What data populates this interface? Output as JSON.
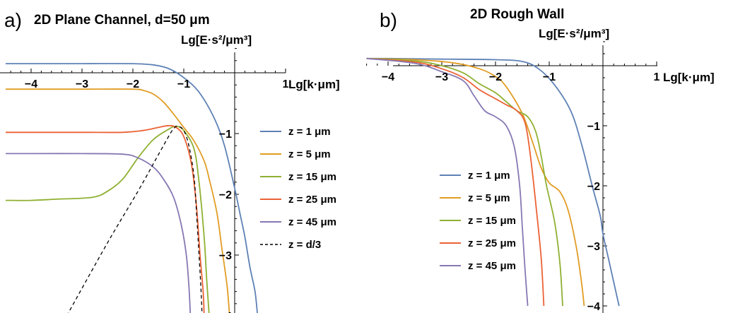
{
  "chart_data": [
    {
      "type": "line",
      "panel_label": "a)",
      "title": "2D Plane Channel, d=50 μm",
      "ylabel": "Lg[E·s²/μm³]",
      "xlabel": "Lg[k·μm]",
      "xlim": [
        -4.5,
        1.0
      ],
      "ylim": [
        -4.0,
        0.4
      ],
      "xticks": [
        -4,
        -3,
        -2,
        -1,
        1
      ],
      "yticks": [
        -1,
        -2,
        -3,
        -4
      ],
      "legend_position": "right",
      "series": [
        {
          "name": "z = 1 μm",
          "color": "#5e81b5",
          "dash": false,
          "points": [
            [
              -4.5,
              0.15
            ],
            [
              -4,
              0.15
            ],
            [
              -3,
              0.15
            ],
            [
              -2,
              0.15
            ],
            [
              -1.6,
              0.13
            ],
            [
              -1.3,
              0.07
            ],
            [
              -1.0,
              -0.08
            ],
            [
              -0.7,
              -0.32
            ],
            [
              -0.4,
              -0.75
            ],
            [
              -0.2,
              -1.2
            ],
            [
              0,
              -1.9
            ],
            [
              0.1,
              -2.3
            ],
            [
              0.2,
              -2.7
            ],
            [
              0.3,
              -3.2
            ],
            [
              0.4,
              -3.6
            ],
            [
              0.45,
              -4.0
            ]
          ]
        },
        {
          "name": "z = 5 μm",
          "color": "#e19c24",
          "dash": false,
          "points": [
            [
              -4.5,
              -0.27
            ],
            [
              -4,
              -0.27
            ],
            [
              -3,
              -0.27
            ],
            [
              -2,
              -0.27
            ],
            [
              -1.8,
              -0.29
            ],
            [
              -1.6,
              -0.35
            ],
            [
              -1.4,
              -0.48
            ],
            [
              -1.2,
              -0.68
            ],
            [
              -1.0,
              -0.9
            ],
            [
              -0.8,
              -1.12
            ],
            [
              -0.6,
              -1.45
            ],
            [
              -0.5,
              -1.75
            ],
            [
              -0.35,
              -2.3
            ],
            [
              -0.25,
              -2.9
            ],
            [
              -0.15,
              -3.5
            ],
            [
              -0.1,
              -4.0
            ]
          ]
        },
        {
          "name": "z = 15 μm",
          "color": "#8fb032",
          "dash": false,
          "points": [
            [
              -4.5,
              -2.1
            ],
            [
              -4,
              -2.1
            ],
            [
              -3.5,
              -2.08
            ],
            [
              -2.8,
              -2.05
            ],
            [
              -2.5,
              -1.95
            ],
            [
              -2.2,
              -1.75
            ],
            [
              -1.9,
              -1.4
            ],
            [
              -1.6,
              -1.1
            ],
            [
              -1.3,
              -0.93
            ],
            [
              -1.15,
              -0.88
            ],
            [
              -1.0,
              -0.95
            ],
            [
              -0.8,
              -1.25
            ],
            [
              -0.7,
              -1.8
            ],
            [
              -0.6,
              -2.7
            ],
            [
              -0.55,
              -3.4
            ],
            [
              -0.5,
              -4.0
            ]
          ]
        },
        {
          "name": "z = 25 μm",
          "color": "#eb6235",
          "dash": false,
          "points": [
            [
              -4.5,
              -0.98
            ],
            [
              -4,
              -0.98
            ],
            [
              -3,
              -0.98
            ],
            [
              -2.2,
              -0.98
            ],
            [
              -1.8,
              -0.95
            ],
            [
              -1.5,
              -0.9
            ],
            [
              -1.3,
              -0.87
            ],
            [
              -1.15,
              -0.9
            ],
            [
              -1.0,
              -1.05
            ],
            [
              -0.85,
              -1.5
            ],
            [
              -0.75,
              -2.2
            ],
            [
              -0.68,
              -3.0
            ],
            [
              -0.62,
              -3.6
            ],
            [
              -0.6,
              -4.0
            ]
          ]
        },
        {
          "name": "z = 45 μm",
          "color": "#8778b3",
          "dash": false,
          "points": [
            [
              -4.5,
              -1.33
            ],
            [
              -4,
              -1.33
            ],
            [
              -3,
              -1.33
            ],
            [
              -2.2,
              -1.34
            ],
            [
              -1.9,
              -1.4
            ],
            [
              -1.6,
              -1.55
            ],
            [
              -1.4,
              -1.75
            ],
            [
              -1.2,
              -2.05
            ],
            [
              -1.05,
              -2.5
            ],
            [
              -0.95,
              -3.0
            ],
            [
              -0.9,
              -3.5
            ],
            [
              -0.87,
              -4.0
            ]
          ]
        },
        {
          "name": "z = d/3",
          "color": "#000000",
          "dash": true,
          "points": [
            [
              -3.3,
              -4.0
            ],
            [
              -2.5,
              -2.8
            ],
            [
              -1.9,
              -1.95
            ],
            [
              -1.5,
              -1.35
            ],
            [
              -1.3,
              -1.05
            ],
            [
              -1.2,
              -0.92
            ],
            [
              -1.12,
              -0.88
            ],
            [
              -1.0,
              -0.95
            ],
            [
              -0.9,
              -1.2
            ],
            [
              -0.8,
              -1.7
            ],
            [
              -0.75,
              -2.3
            ],
            [
              -0.7,
              -3.0
            ],
            [
              -0.66,
              -3.6
            ],
            [
              -0.64,
              -4.0
            ]
          ]
        }
      ]
    },
    {
      "type": "line",
      "panel_label": "b)",
      "title": "2D Rough Wall",
      "ylabel": "Lg[E·s²/μm³]",
      "xlabel": "Lg[k·μm]",
      "xlim": [
        -4.4,
        1.1
      ],
      "ylim": [
        -4.0,
        0.4
      ],
      "xticks": [
        -4,
        -3,
        -2,
        -1,
        1
      ],
      "yticks": [
        -1,
        -2,
        -3,
        -4
      ],
      "legend_position": "left",
      "series": [
        {
          "name": "z = 1 μm",
          "color": "#5e81b5",
          "dash": false,
          "points": [
            [
              -4.4,
              0.12
            ],
            [
              -4,
              0.12
            ],
            [
              -3,
              0.11
            ],
            [
              -2,
              0.1
            ],
            [
              -1.5,
              0.07
            ],
            [
              -1.2,
              -0.05
            ],
            [
              -0.9,
              -0.32
            ],
            [
              -0.6,
              -0.75
            ],
            [
              -0.4,
              -1.3
            ],
            [
              -0.2,
              -2.0
            ],
            [
              -0.05,
              -2.5
            ],
            [
              0,
              -2.8
            ],
            [
              0.1,
              -3.2
            ],
            [
              0.2,
              -3.6
            ],
            [
              0.3,
              -4.0
            ]
          ]
        },
        {
          "name": "z = 5 μm",
          "color": "#e19c24",
          "dash": false,
          "points": [
            [
              -4.4,
              0.12
            ],
            [
              -3.5,
              0.1
            ],
            [
              -2.8,
              0.05
            ],
            [
              -2.3,
              -0.05
            ],
            [
              -2.0,
              -0.18
            ],
            [
              -1.8,
              -0.35
            ],
            [
              -1.5,
              -0.8
            ],
            [
              -1.3,
              -1.3
            ],
            [
              -1.15,
              -1.7
            ],
            [
              -1.0,
              -1.95
            ],
            [
              -0.8,
              -2.1
            ],
            [
              -0.65,
              -2.4
            ],
            [
              -0.5,
              -3.0
            ],
            [
              -0.4,
              -3.6
            ],
            [
              -0.35,
              -4.0
            ]
          ]
        },
        {
          "name": "z = 15 μm",
          "color": "#8fb032",
          "dash": false,
          "points": [
            [
              -4.4,
              0.12
            ],
            [
              -3.5,
              0.08
            ],
            [
              -3.0,
              0.0
            ],
            [
              -2.6,
              -0.12
            ],
            [
              -2.3,
              -0.3
            ],
            [
              -2.0,
              -0.45
            ],
            [
              -1.8,
              -0.6
            ],
            [
              -1.6,
              -0.75
            ],
            [
              -1.4,
              -0.85
            ],
            [
              -1.25,
              -1.1
            ],
            [
              -1.15,
              -1.5
            ],
            [
              -1.05,
              -2.0
            ],
            [
              -0.9,
              -2.6
            ],
            [
              -0.8,
              -3.3
            ],
            [
              -0.75,
              -4.0
            ]
          ]
        },
        {
          "name": "z = 25 μm",
          "color": "#eb6235",
          "dash": false,
          "points": [
            [
              -4.4,
              0.12
            ],
            [
              -3.5,
              0.06
            ],
            [
              -3.0,
              -0.05
            ],
            [
              -2.6,
              -0.2
            ],
            [
              -2.3,
              -0.4
            ],
            [
              -2.0,
              -0.55
            ],
            [
              -1.8,
              -0.65
            ],
            [
              -1.6,
              -0.75
            ],
            [
              -1.45,
              -0.95
            ],
            [
              -1.35,
              -1.5
            ],
            [
              -1.25,
              -2.3
            ],
            [
              -1.15,
              -3.2
            ],
            [
              -1.1,
              -4.0
            ]
          ]
        },
        {
          "name": "z = 45 μm",
          "color": "#8778b3",
          "dash": false,
          "points": [
            [
              -4.4,
              0.12
            ],
            [
              -3.5,
              0.04
            ],
            [
              -3.0,
              -0.1
            ],
            [
              -2.6,
              -0.25
            ],
            [
              -2.4,
              -0.5
            ],
            [
              -2.2,
              -0.75
            ],
            [
              -2.0,
              -0.85
            ],
            [
              -1.8,
              -1.0
            ],
            [
              -1.65,
              -1.35
            ],
            [
              -1.55,
              -2.0
            ],
            [
              -1.5,
              -2.7
            ],
            [
              -1.45,
              -3.4
            ],
            [
              -1.4,
              -4.0
            ]
          ]
        }
      ]
    }
  ]
}
